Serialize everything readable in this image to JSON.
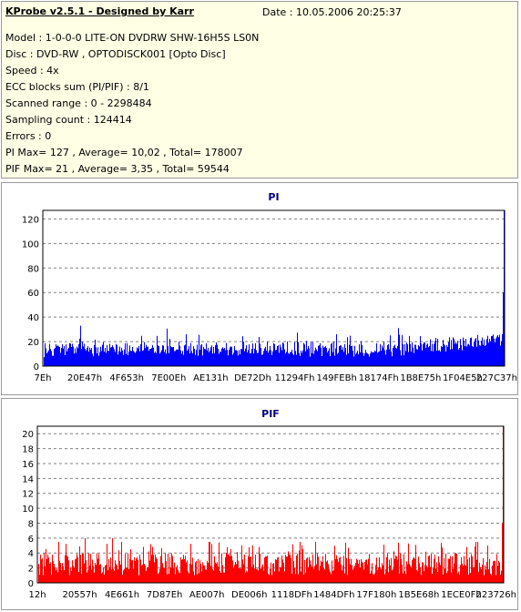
{
  "header": {
    "app_title": "KProbe v2.5.1 - Designed by Karr",
    "date_line": "Date : 10.05.2006 20:25:37",
    "info_lines": [
      "Model : 1-0-0-0 LITE-ON DVDRW SHW-16H5S  LS0N",
      "Disc : DVD-RW , OPTODISCK001 [Opto Disc]",
      "Speed : 4x",
      "ECC blocks sum (PI/PIF) : 8/1",
      "Scanned range : 0 - 2298484",
      "Sampling count : 124414",
      "Errors : 0",
      "PI Max= 127 , Average= 10,02 , Total= 178007",
      "PIF Max= 21 , Average= 3,35 , Total= 59544"
    ]
  },
  "chart_data": [
    {
      "type": "bar",
      "title": "PI",
      "xlabel": "",
      "ylabel": "",
      "ylim": [
        0,
        127
      ],
      "yticks": [
        0,
        20,
        40,
        60,
        80,
        100,
        120
      ],
      "xtick_labels": [
        "7Eh",
        "20E47h",
        "4F653h",
        "7E00Eh",
        "AE131h",
        "DE72Dh",
        "11294Fh",
        "149FEBh",
        "18174Fh",
        "1B8E75h",
        "1F04E5h",
        "227C37h"
      ],
      "grid": true,
      "color": "#0000ff",
      "title_color": "#000080",
      "approx_values": {
        "start_avg": 14,
        "middle_avg": 13,
        "end_avg": 19,
        "notable_peaks": [
          33,
          31,
          26,
          33
        ],
        "last_value": 127
      }
    },
    {
      "type": "bar",
      "title": "PIF",
      "xlabel": "",
      "ylabel": "",
      "ylim": [
        0,
        21
      ],
      "yticks": [
        0,
        2,
        4,
        6,
        8,
        10,
        12,
        14,
        16,
        18,
        20
      ],
      "xtick_labels": [
        "12h",
        "20557h",
        "4E661h",
        "7D87Eh",
        "AE007h",
        "DE006h",
        "1118DFh",
        "1484DFh",
        "17F180h",
        "1B5E68h",
        "1ECE0Fh",
        "223726h"
      ],
      "grid": true,
      "color": "#ff0000",
      "title_color": "#000080",
      "approx_values": {
        "typical_range": [
          1,
          5
        ],
        "notable_peaks": [
          6,
          6
        ],
        "last_value": 21
      }
    }
  ]
}
